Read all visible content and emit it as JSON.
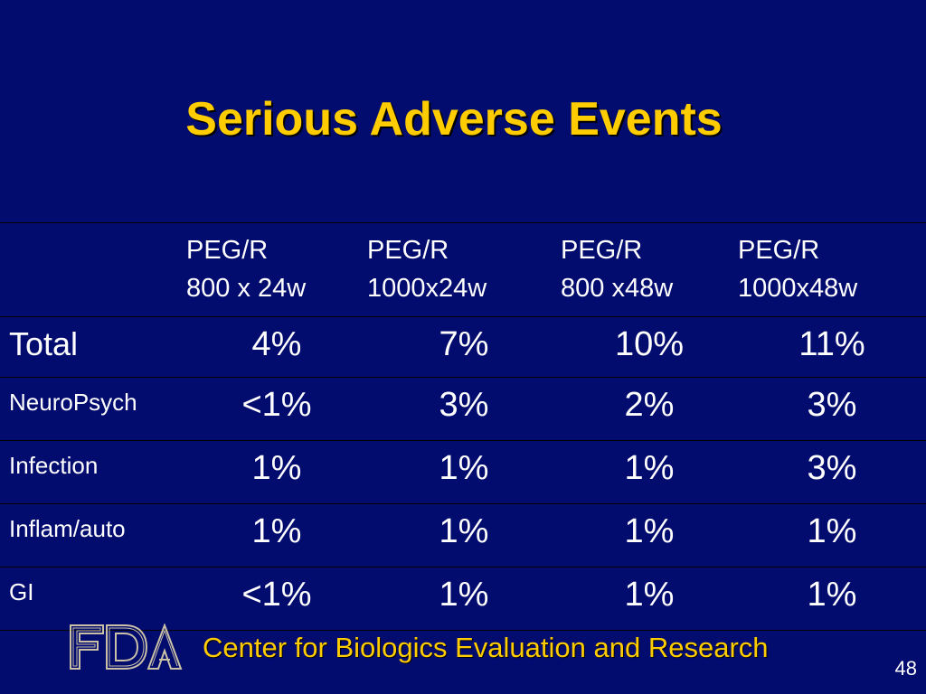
{
  "slide": {
    "title": "Serious Adverse Events",
    "footer_text": "Center for Biologics Evaluation and Research",
    "page_number": "48",
    "logo_text": "FDA"
  },
  "table": {
    "header": [
      {
        "line1": "PEG/R",
        "line2": "800 x 24w"
      },
      {
        "line1": "PEG/R",
        "line2": "1000x24w"
      },
      {
        "line1": "PEG/R",
        "line2": "800 x48w"
      },
      {
        "line1": "PEG/R",
        "line2": "1000x48w"
      }
    ],
    "rows": [
      {
        "label": "Total",
        "values": [
          "4%",
          "7%",
          "10%",
          "11%"
        ]
      },
      {
        "label": "NeuroPsych",
        "values": [
          "<1%",
          "3%",
          "2%",
          "3%"
        ]
      },
      {
        "label": "Infection",
        "values": [
          "1%",
          "1%",
          "1%",
          "3%"
        ]
      },
      {
        "label": "Inflam/auto",
        "values": [
          "1%",
          "1%",
          "1%",
          "1%"
        ]
      },
      {
        "label": "GI",
        "values": [
          "<1%",
          "1%",
          "1%",
          "1%"
        ]
      }
    ]
  },
  "colors": {
    "background": "#020B6E",
    "title": "#FFCC00",
    "text": "#FFFFFF"
  }
}
